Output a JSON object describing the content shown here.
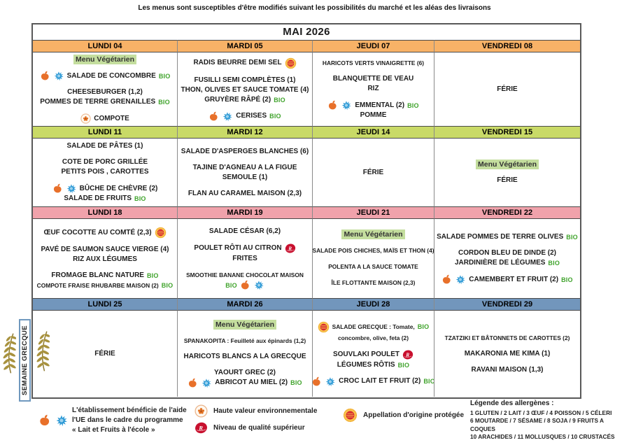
{
  "disclaimer": "Les menus sont susceptibles d'être modifiés suivant les possibilités du marché et les aléas des livraisons",
  "title": "MAI 2026",
  "badges": {
    "bio": "BIO"
  },
  "colors": {
    "week1_band": "#F8B267",
    "week2_band": "#C9DA67",
    "week3_band": "#F0A2AB",
    "week4_band": "#7296BC",
    "bio_green": "#3FA32B",
    "veg_highlight": "#C4DE9E"
  },
  "sidebar_label": "SEMAINE GRECQUE",
  "weeks": [
    {
      "band": "week1_band",
      "days": [
        {
          "label": "LUNDI 04",
          "lines": [
            {
              "text": "Menu Végétarien",
              "highlight": true
            },
            {
              "text": "SALADE DE CONCOMBRE",
              "pre": [
                "fruit-icon",
                "milk-icon"
              ],
              "post": [
                "bio-badge"
              ],
              "gap": true
            },
            {
              "text": "CHEESEBURGER (1,2)",
              "gap": true
            },
            {
              "text": "POMMES DE TERRE GRENAILLES",
              "post": [
                "bio-badge"
              ]
            },
            {
              "text": "COMPOTE",
              "pre": [
                "hve-icon"
              ],
              "gap": true
            }
          ]
        },
        {
          "label": "MARDI 05",
          "lines": [
            {
              "text": "RADIS BEURRE DEMI SEL",
              "post": [
                "aop-icon"
              ]
            },
            {
              "text": "FUSILLI SEMI COMPLÈTES (1)",
              "gap": true
            },
            {
              "text": "THON, OLIVES ET SAUCE TOMATE (4)"
            },
            {
              "text": "GRUYÈRE RÂPÉ (2)",
              "post": [
                "bio-badge"
              ]
            },
            {
              "text": "CERISES",
              "pre": [
                "fruit-icon",
                "milk-icon"
              ],
              "post": [
                "bio-badge"
              ],
              "gap": true
            }
          ]
        },
        {
          "label": "JEUDI 07",
          "lines": [
            {
              "text": "HARICOTS VERTS VINAIGRETTE (6)",
              "small": true
            },
            {
              "text": "BLANQUETTE DE VEAU",
              "gap": true
            },
            {
              "text": "RIZ"
            },
            {
              "text": "EMMENTAL (2)",
              "pre": [
                "fruit-icon",
                "milk-icon"
              ],
              "post": [
                "bio-badge"
              ],
              "gap": true
            },
            {
              "text": "POMME"
            }
          ]
        },
        {
          "label": "VENDREDI 08",
          "lines": [
            {
              "text": "FÉRIE"
            }
          ]
        }
      ]
    },
    {
      "band": "week2_band",
      "days": [
        {
          "label": "LUNDI 11",
          "lines": [
            {
              "text": "SALADE DE PÂTES (1)"
            },
            {
              "text": "COTE DE PORC GRILLÉE",
              "gap": true
            },
            {
              "text": "PETITS POIS , CAROTTES"
            },
            {
              "text": "BÛCHE DE CHÈVRE (2)",
              "pre": [
                "fruit-icon",
                "milk-icon"
              ],
              "gap": true
            },
            {
              "text": "SALADE DE FRUITS",
              "post": [
                "bio-badge"
              ]
            }
          ]
        },
        {
          "label": "MARDI 12",
          "lines": [
            {
              "text": "SALADE D'ASPERGES BLANCHES (6)"
            },
            {
              "text": "TAJINE D'AGNEAU A LA FIGUE",
              "gap": true
            },
            {
              "text": "SEMOULE (1)"
            },
            {
              "text": "FLAN AU CARAMEL MAISON (2,3)",
              "gap": true
            }
          ]
        },
        {
          "label": "JEUDI 14",
          "lines": [
            {
              "text": "FÉRIE"
            }
          ]
        },
        {
          "label": "VENDREDI 15",
          "lines": [
            {
              "text": "Menu Végétarien",
              "highlight": true
            },
            {
              "text": "FÉRIE",
              "gap": true
            }
          ]
        }
      ]
    },
    {
      "band": "week3_band",
      "days": [
        {
          "label": "LUNDI 18",
          "lines": [
            {
              "text": "ŒUF COCOTTE AU COMTÉ (2,3)",
              "post": [
                "aop-icon"
              ]
            },
            {
              "text": "PAVÉ DE SAUMON SAUCE VIERGE (4)",
              "gap": true
            },
            {
              "text": "RIZ AUX LÉGUMES"
            },
            {
              "text": "FROMAGE BLANC NATURE",
              "post": [
                "bio-badge"
              ],
              "gap": true
            },
            {
              "text": "COMPOTE FRAISE RHUBARBE MAISON (2)",
              "post": [
                "bio-badge"
              ],
              "small": true
            }
          ]
        },
        {
          "label": "MARDI 19",
          "lines": [
            {
              "text": "SALADE CÉSAR (6,2)"
            },
            {
              "text": "POULET RÔTI AU CITRON",
              "post": [
                "label-rouge-icon"
              ],
              "gap": true
            },
            {
              "text": "FRITES"
            },
            {
              "text": "SMOOTHIE BANANE CHOCOLAT MAISON",
              "gap": true,
              "small": true
            },
            {
              "text": "",
              "pre": [
                "bio-badge",
                "fruit-icon",
                "milk-icon"
              ]
            }
          ]
        },
        {
          "label": "JEUDI 21",
          "lines": [
            {
              "text": "Menu Végétarien",
              "highlight": true
            },
            {
              "text": "SALADE POIS CHICHES, MAÏS ET THON (4)",
              "gap": true,
              "small": true
            },
            {
              "text": "POLENTA A LA SAUCE TOMATE",
              "gap": true,
              "small": true
            },
            {
              "text": "ÎLE FLOTTANTE MAISON (2,3)",
              "gap": true,
              "small": true
            }
          ]
        },
        {
          "label": "VENDREDI 22",
          "lines": [
            {
              "text": "SALADE POMMES DE TERRE OLIVES",
              "post": [
                "bio-badge"
              ]
            },
            {
              "text": "CORDON BLEU DE DINDE (2)",
              "gap": true
            },
            {
              "text": "JARDINIÈRE DE LÉGUMES",
              "post": [
                "bio-badge"
              ]
            },
            {
              "text": "CAMEMBERT ET FRUIT (2)",
              "pre": [
                "fruit-icon",
                "milk-icon"
              ],
              "post": [
                "bio-badge"
              ],
              "gap": true
            }
          ]
        }
      ]
    },
    {
      "band": "week4_band",
      "days": [
        {
          "label": "LUNDI 25",
          "lines": [
            {
              "text": "FÉRIE"
            }
          ]
        },
        {
          "label": "MARDI 26",
          "lines": [
            {
              "text": "Menu Végétarien",
              "highlight": true
            },
            {
              "text": "SPANAKOPITA : Feuilleté aux épinards (1,2)",
              "gap": true,
              "small": true
            },
            {
              "text": "HARICOTS BLANCS A LA GRECQUE",
              "gap": true
            },
            {
              "text": "YAOURT GREC (2)",
              "gap": true
            },
            {
              "text": "ABRICOT AU MIEL (2)",
              "pre": [
                "fruit-icon",
                "milk-icon"
              ],
              "post": [
                "bio-badge"
              ]
            }
          ]
        },
        {
          "label": "JEUDI 28",
          "lines": [
            {
              "text": "SALADE GRECQUE : Tomate,",
              "pre": [
                "aop-icon"
              ],
              "post": [
                "bio-badge"
              ],
              "small": true
            },
            {
              "text": "concombre, olive, feta (2)",
              "small": true
            },
            {
              "text": "SOUVLAKI POULET",
              "post": [
                "label-rouge-icon"
              ],
              "gap": true
            },
            {
              "text": "LÉGUMES RÔTIS",
              "post": [
                "bio-badge"
              ]
            },
            {
              "text": "CROC LAIT ET FRUIT (2)",
              "pre": [
                "fruit-icon",
                "milk-icon"
              ],
              "post": [
                "bio-badge"
              ],
              "gap": true
            }
          ]
        },
        {
          "label": "VENDREDI 29",
          "lines": [
            {
              "text": "TZATZIKI ET BÂTONNETS DE CAROTTES (2)",
              "small": true
            },
            {
              "text": "MAKARONIA ME KIMA (1)",
              "gap": true
            },
            {
              "text": "RAVANI MAISON (1,3)",
              "gap": true
            }
          ]
        }
      ]
    }
  ],
  "footer": {
    "eu_line1": "L'établissement bénéficie de l'aide",
    "eu_line2": "l'UE dans le cadre du programme",
    "eu_line3": "« Lait et Fruits à l'école »",
    "hve_label": "Haute valeur environnementale",
    "label_rouge_label": "Niveau de qualité supérieur",
    "aop_label": "Appellation d'origine protégée",
    "allergens_title": "Légende des allergènes :",
    "allergens_line1": "1 GLUTEN  / 2 LAIT / 3 ŒUF / 4 POISSON / 5 CÉLERI",
    "allergens_line2": "6 MOUTARDE / 7 SÉSAME / 8 SOJA / 9 FRUITS A COQUES",
    "allergens_line3": "10 ARACHIDES / 11 MOLLUSQUES / 10 CRUSTACÉS"
  }
}
